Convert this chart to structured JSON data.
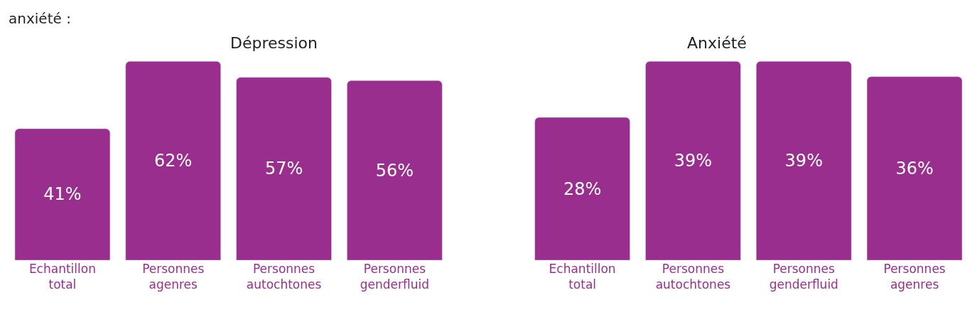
{
  "chart_data": [
    {
      "type": "bar",
      "title": "Dépression",
      "categories": [
        "Echantillon total",
        "Personnes agenres",
        "Personnes autochtones",
        "Personnes genderfluid"
      ],
      "values": [
        41,
        62,
        57,
        56
      ],
      "value_labels": [
        "41%",
        "62%",
        "57%",
        "56%"
      ],
      "color": "#992e8f",
      "tick_labels": "x",
      "annotations": [
        "anxiété :"
      ]
    },
    {
      "type": "bar",
      "title": "Anxiété",
      "categories": [
        "Echantillon total",
        "Personnes autochtones",
        "Personnes genderfluid",
        "Personnes agenres"
      ],
      "values": [
        28,
        39,
        39,
        36
      ],
      "value_labels": [
        "28%",
        "39%",
        "39%",
        "36%"
      ],
      "color": "#992e8f",
      "tick_labels": "x"
    }
  ]
}
